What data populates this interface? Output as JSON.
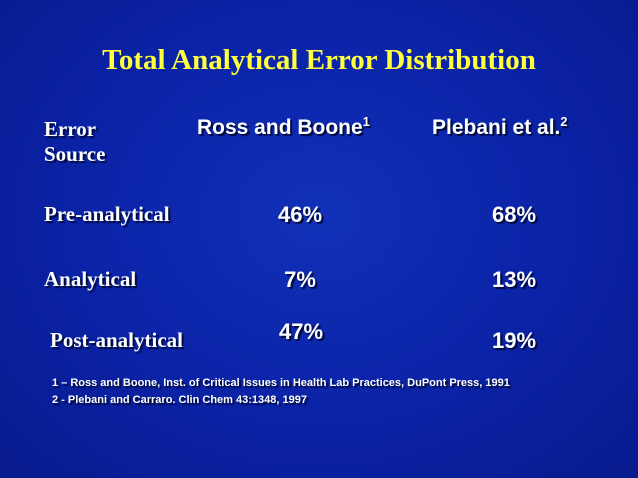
{
  "slide": {
    "title": "Total Analytical Error Distribution",
    "colors": {
      "background": "#0a22a6",
      "title": "#ffff3c",
      "text": "#ffffff"
    },
    "table": {
      "header": {
        "col0_line1": "Error",
        "col0_line2": "Source",
        "col1": "Ross and Boone",
        "col1_sup": "1",
        "col2": "Plebani et al.",
        "col2_sup": "2"
      },
      "rows": [
        {
          "label": "Pre-analytical",
          "ross": "46%",
          "plebani": "68%"
        },
        {
          "label": "Analytical",
          "ross": "7%",
          "plebani": "13%"
        },
        {
          "label": "Post-analytical",
          "ross": "47%",
          "plebani": "19%"
        }
      ]
    },
    "footnotes": [
      "1 – Ross and Boone, Inst. of Critical Issues in Health Lab Practices, DuPont Press, 1991",
      "2  -  Plebani and Carraro. Clin Chem 43:1348, 1997"
    ]
  }
}
